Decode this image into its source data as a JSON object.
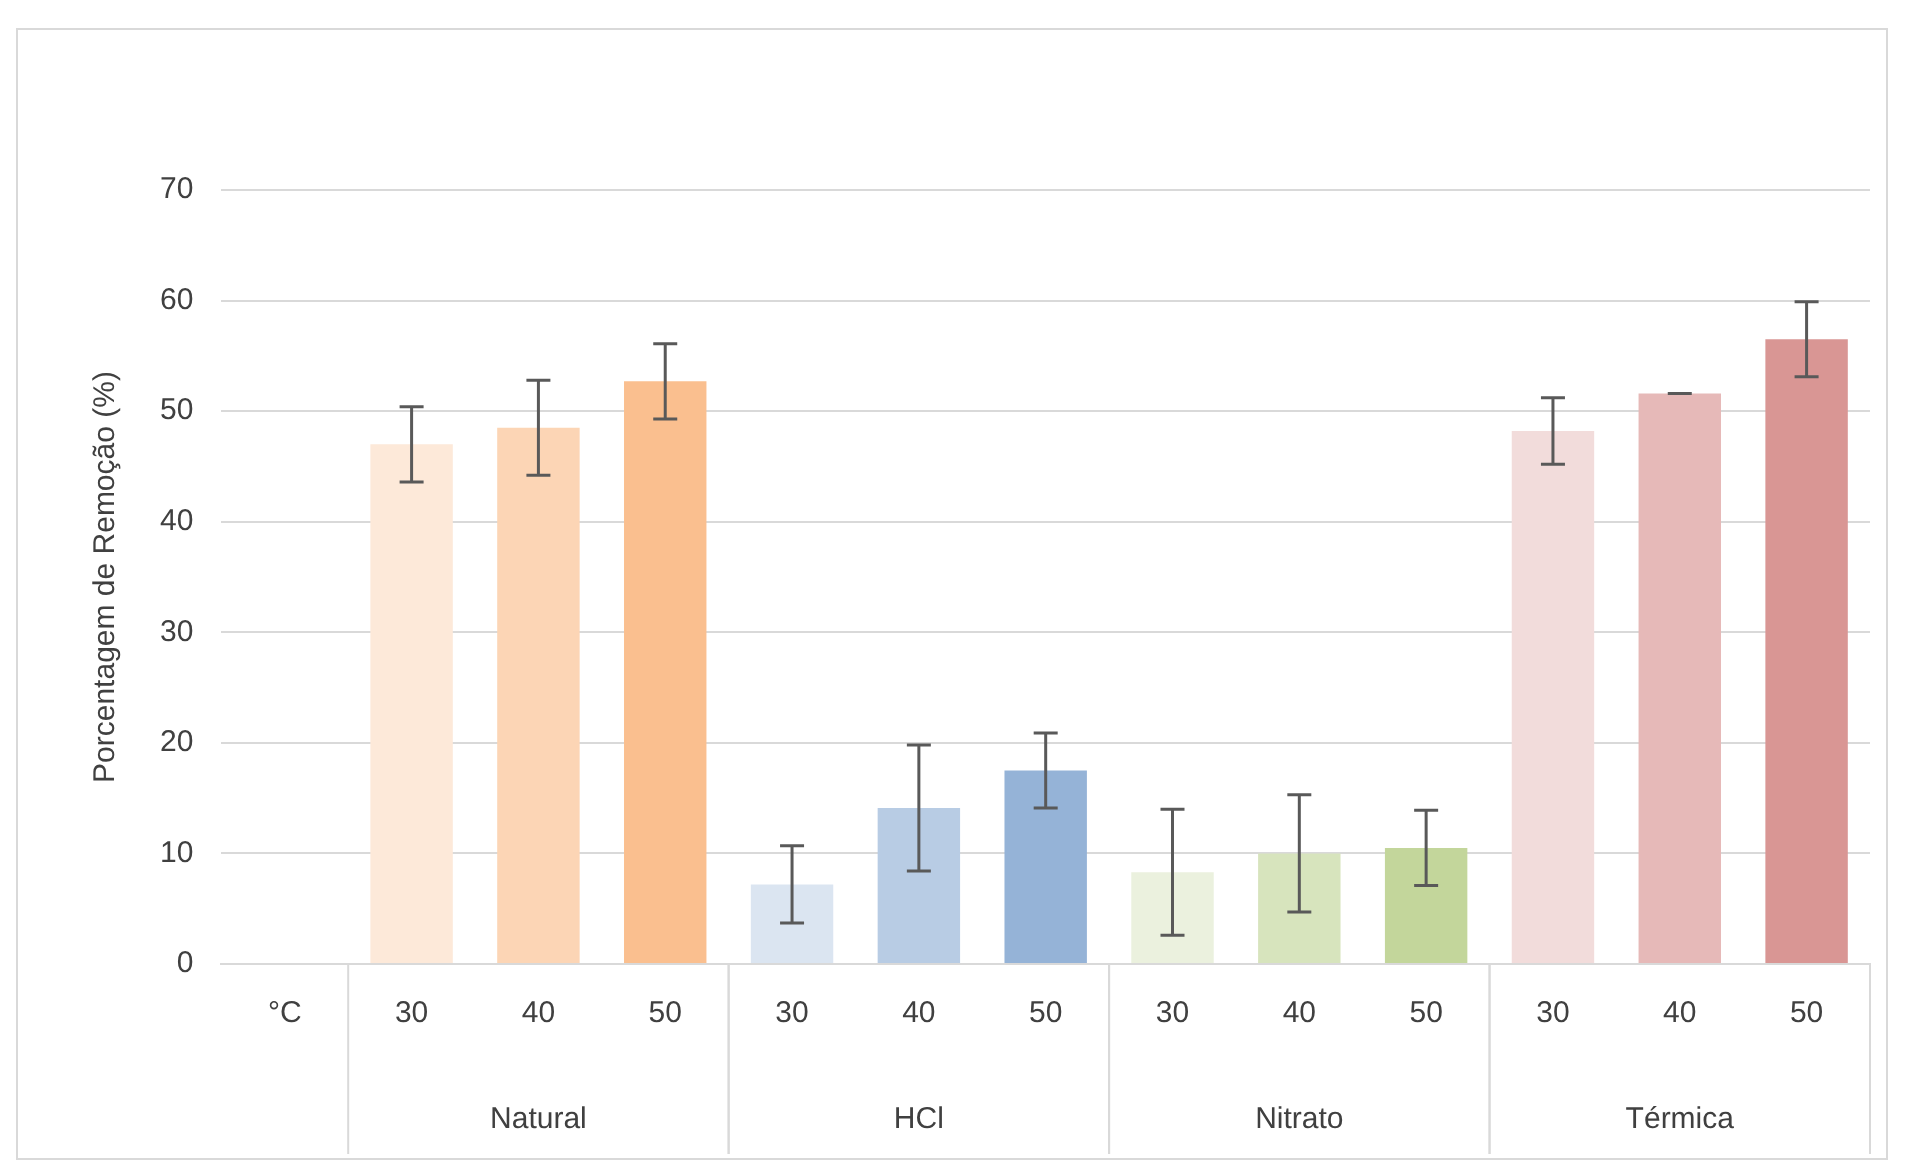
{
  "chart_data": {
    "type": "bar",
    "ylabel": "Porcentagem de Remoção (%)",
    "categories": [
      "°C",
      "30",
      "40",
      "50",
      "30",
      "40",
      "50",
      "30",
      "40",
      "50",
      "30",
      "40",
      "50"
    ],
    "values": [
      null,
      47.0,
      48.5,
      52.7,
      7.2,
      14.1,
      17.5,
      8.3,
      10.0,
      10.5,
      48.2,
      51.6,
      56.5
    ],
    "errors": [
      null,
      3.4,
      4.3,
      3.4,
      3.5,
      5.7,
      3.4,
      5.7,
      5.3,
      3.4,
      3.0,
      0,
      3.4
    ],
    "colors": [
      "#ffffff",
      "#fde9d9",
      "#fcd5b5",
      "#fabf8f",
      "#dbe5f1",
      "#b8cce4",
      "#95b3d7",
      "#ebf1de",
      "#d7e4bd",
      "#c3d69b",
      "#f2dcdb",
      "#e6b9b8",
      "#d99694"
    ],
    "ylim": [
      0,
      70
    ],
    "yticks": [
      0,
      10,
      20,
      30,
      40,
      50,
      60,
      70
    ],
    "grid": "y",
    "legend": false,
    "annotations": [
      "Natural",
      "HCl",
      "Nitrato",
      "Térmica"
    ]
  }
}
